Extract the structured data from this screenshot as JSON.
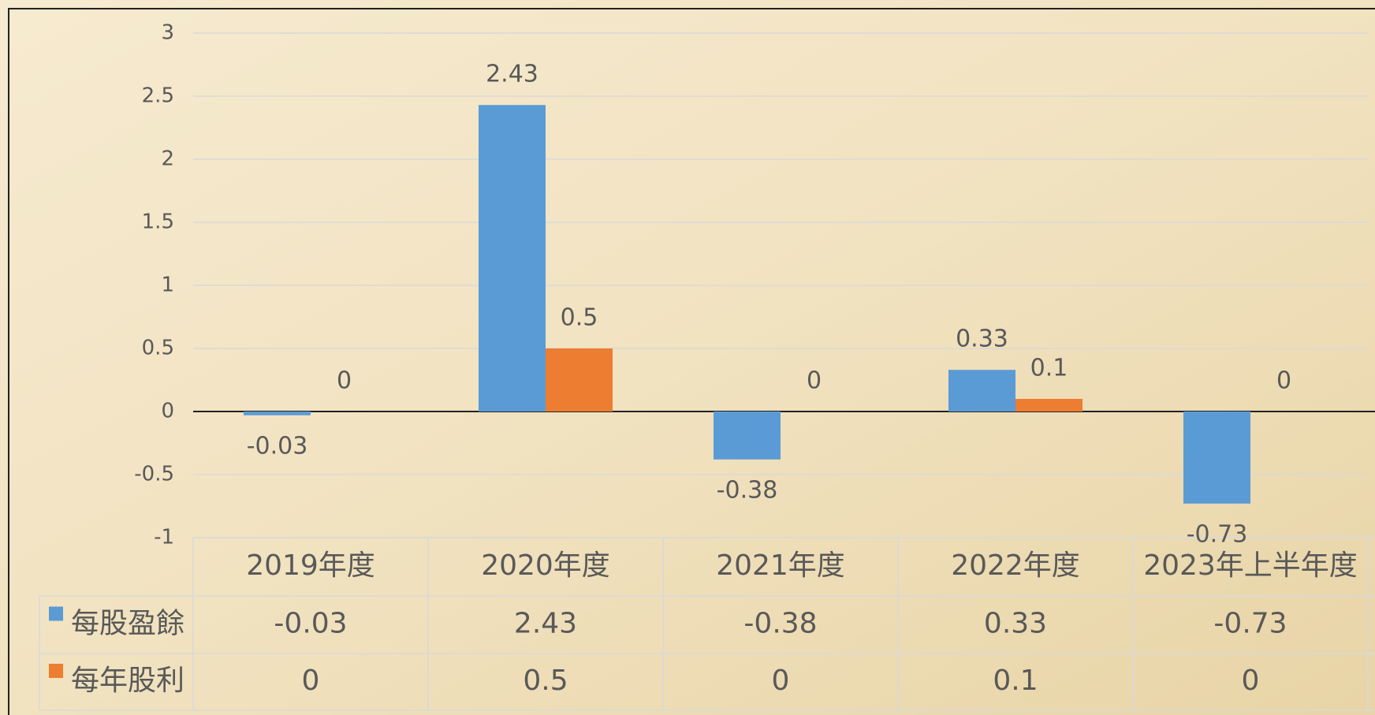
{
  "chart_data": {
    "type": "bar",
    "categories": [
      "2019年度",
      "2020年度",
      "2021年度",
      "2022年度",
      "2023年上半年度"
    ],
    "series": [
      {
        "name": "每股盈餘",
        "color": "#5b9bd5",
        "values": [
          -0.03,
          2.43,
          -0.38,
          0.33,
          -0.73
        ]
      },
      {
        "name": "每年股利",
        "color": "#ed7d31",
        "values": [
          0,
          0.5,
          0,
          0.1,
          0
        ]
      }
    ],
    "ylim": [
      -1,
      3
    ],
    "yticks": [
      -1,
      -0.5,
      0,
      0.5,
      1,
      1.5,
      2,
      2.5,
      3
    ],
    "grid": true
  }
}
